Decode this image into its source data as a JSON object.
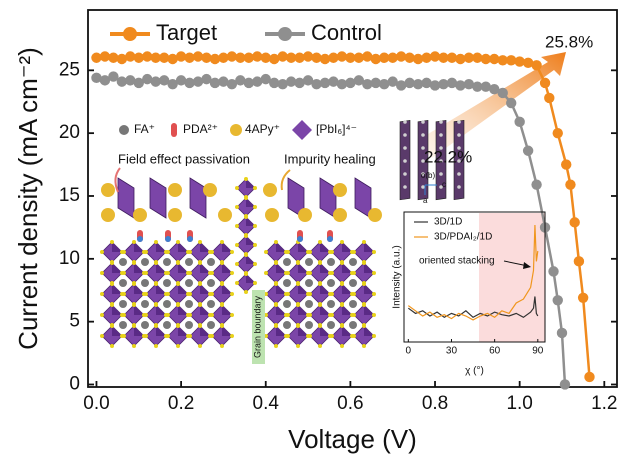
{
  "chart_data": [
    {
      "type": "line",
      "x_label": "Voltage (V)",
      "y_label": "Current density (mA cm⁻²)",
      "xlim": [
        -0.02,
        1.23
      ],
      "ylim": [
        -0.2,
        29.8
      ],
      "xticks": [
        {
          "value": 0,
          "label": "0.0"
        },
        0.2,
        0.4,
        0.6,
        0.8,
        {
          "value": 1,
          "label": "1.0"
        },
        1.2
      ],
      "yticks": [
        0,
        5,
        10,
        15,
        20,
        25
      ],
      "legend": "top-left",
      "marker": "circle",
      "annotations": [
        "25.8%",
        "22.2%"
      ],
      "series": [
        {
          "name": "Target",
          "color": "#f08a1e",
          "x": [
            0,
            0.02,
            0.04,
            0.06,
            0.08,
            0.1,
            0.12,
            0.14,
            0.16,
            0.18,
            0.2,
            0.22,
            0.24,
            0.26,
            0.28,
            0.3,
            0.32,
            0.34,
            0.36,
            0.38,
            0.4,
            0.42,
            0.44,
            0.46,
            0.48,
            0.5,
            0.52,
            0.54,
            0.56,
            0.58,
            0.6,
            0.62,
            0.64,
            0.66,
            0.68,
            0.7,
            0.72,
            0.74,
            0.76,
            0.78,
            0.8,
            0.82,
            0.84,
            0.86,
            0.88,
            0.9,
            0.92,
            0.94,
            0.96,
            0.98,
            1.0,
            1.02,
            1.04,
            1.06,
            1.07,
            1.09,
            1.11,
            1.12,
            1.13,
            1.14,
            1.15,
            1.165
          ],
          "values": [
            26.0,
            26.1,
            26.0,
            25.9,
            26.1,
            26.0,
            26.1,
            26.0,
            26.0,
            25.9,
            26.1,
            26.0,
            26.1,
            26.0,
            25.9,
            26.0,
            26.1,
            26.0,
            26.0,
            26.1,
            26.0,
            25.9,
            26.1,
            26.0,
            26.0,
            26.1,
            26.0,
            25.9,
            26.0,
            26.1,
            26.0,
            26.0,
            26.1,
            25.9,
            26.0,
            26.0,
            26.1,
            26.0,
            25.9,
            26.0,
            26.1,
            26.0,
            26.0,
            25.9,
            26.0,
            26.0,
            25.9,
            25.9,
            25.8,
            25.8,
            25.7,
            25.6,
            25.4,
            24.0,
            22.8,
            20.0,
            17.5,
            15.9,
            12.9,
            9.8,
            6.9,
            0.6
          ]
        },
        {
          "name": "Control",
          "color": "#8f8f8f",
          "x": [
            0,
            0.02,
            0.04,
            0.06,
            0.08,
            0.1,
            0.12,
            0.14,
            0.16,
            0.18,
            0.2,
            0.22,
            0.24,
            0.26,
            0.28,
            0.3,
            0.32,
            0.34,
            0.36,
            0.38,
            0.4,
            0.42,
            0.44,
            0.46,
            0.48,
            0.5,
            0.52,
            0.54,
            0.56,
            0.58,
            0.6,
            0.62,
            0.64,
            0.66,
            0.68,
            0.7,
            0.72,
            0.74,
            0.76,
            0.78,
            0.8,
            0.82,
            0.84,
            0.86,
            0.88,
            0.9,
            0.92,
            0.94,
            0.96,
            0.98,
            1.0,
            1.02,
            1.04,
            1.06,
            1.08,
            1.09,
            1.1,
            1.107
          ],
          "values": [
            24.4,
            24.2,
            24.5,
            24.1,
            24.2,
            24.0,
            24.3,
            24.1,
            24.2,
            23.9,
            24.2,
            24.0,
            24.1,
            24.3,
            24.0,
            24.1,
            23.9,
            24.2,
            24.0,
            24.1,
            24.3,
            24.0,
            23.9,
            24.1,
            24.0,
            24.2,
            23.9,
            24.0,
            24.1,
            23.9,
            24.0,
            24.2,
            23.9,
            24.0,
            23.9,
            24.1,
            23.8,
            24.0,
            23.9,
            24.0,
            23.8,
            23.9,
            24.0,
            23.8,
            23.9,
            23.7,
            23.7,
            23.5,
            23.2,
            22.4,
            20.9,
            18.6,
            15.9,
            12.5,
            9.0,
            6.7,
            4.1,
            0
          ]
        }
      ]
    },
    {
      "type": "line",
      "x_label": "χ (°)",
      "y_label": "Intensity (a.u.)",
      "xlim": [
        -3,
        95
      ],
      "ylim": [
        0,
        1
      ],
      "xticks": [
        0,
        30,
        60,
        90
      ],
      "legend": "top-left",
      "annotations": [
        "oriented stacking"
      ],
      "x": [
        0,
        5,
        10,
        15,
        20,
        25,
        30,
        35,
        40,
        45,
        50,
        55,
        60,
        65,
        70,
        75,
        80,
        85,
        87,
        88,
        89,
        90
      ],
      "series": [
        {
          "name": "3D/1D",
          "color": "#333333",
          "values": [
            0.26,
            0.22,
            0.24,
            0.2,
            0.23,
            0.19,
            0.22,
            0.2,
            0.24,
            0.19,
            0.22,
            0.2,
            0.23,
            0.21,
            0.2,
            0.22,
            0.19,
            0.23,
            0.26,
            0.35,
            0.22,
            0.2
          ]
        },
        {
          "name": "3D/PDAI₂/1D",
          "color": "#f0961e",
          "values": [
            0.28,
            0.24,
            0.2,
            0.23,
            0.19,
            0.21,
            0.18,
            0.22,
            0.2,
            0.17,
            0.2,
            0.22,
            0.19,
            0.24,
            0.22,
            0.3,
            0.33,
            0.42,
            0.55,
            0.9,
            0.62,
            0.7
          ]
        }
      ]
    }
  ],
  "schematic": {
    "legend": [
      "FA⁺",
      "PDA²⁺",
      "4APy⁺",
      "[PbI₆]⁴⁻"
    ],
    "labels": [
      "Field effect passivation",
      "Impurity healing",
      "Grain boundary"
    ],
    "axes": [
      "o(b)",
      "c",
      "a"
    ]
  }
}
